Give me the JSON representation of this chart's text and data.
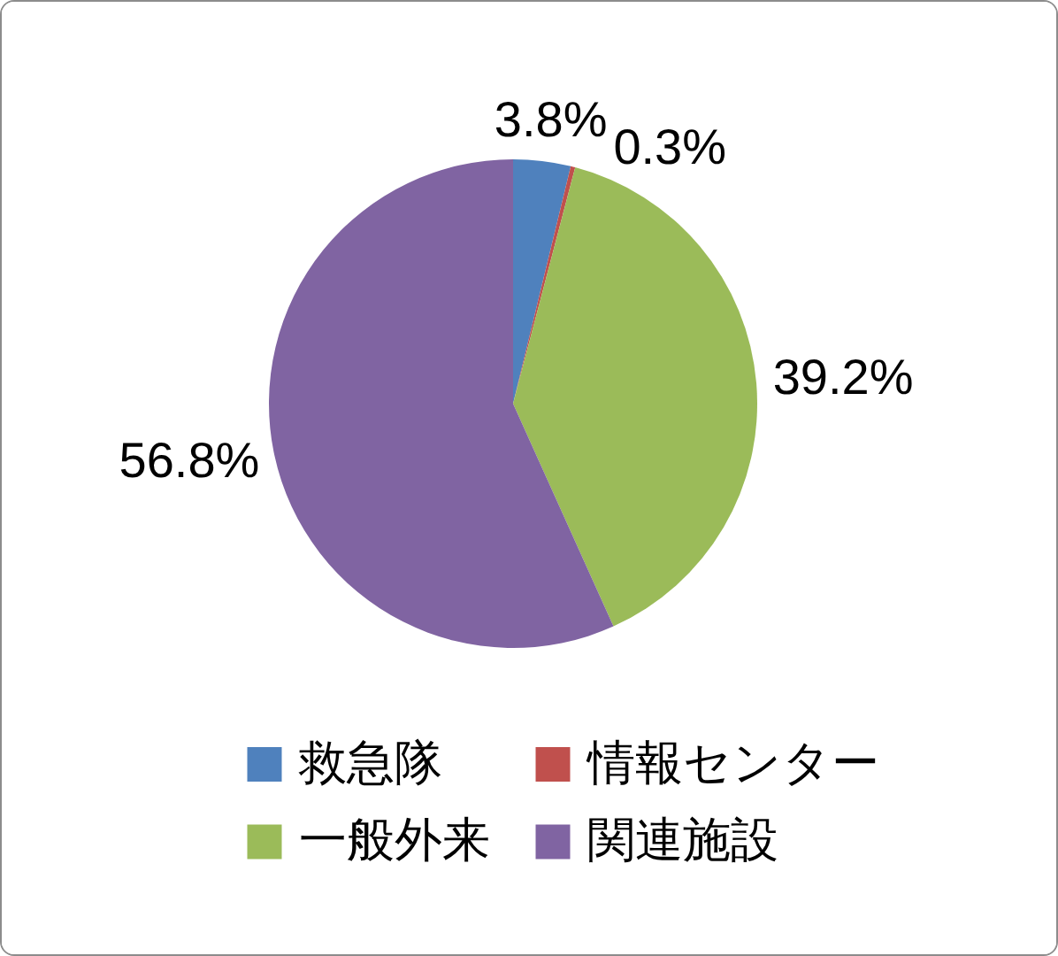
{
  "chart_data": {
    "type": "pie",
    "categories": [
      "救急隊",
      "情報センター",
      "一般外来",
      "関連施設"
    ],
    "values": [
      3.8,
      0.3,
      39.2,
      56.8
    ],
    "colors": [
      "#4f81bd",
      "#c0504d",
      "#9bbb59",
      "#8064a2"
    ],
    "value_labels": [
      "3.8%",
      "0.3%",
      "39.2%",
      "56.8%"
    ],
    "legend": "bottom"
  }
}
